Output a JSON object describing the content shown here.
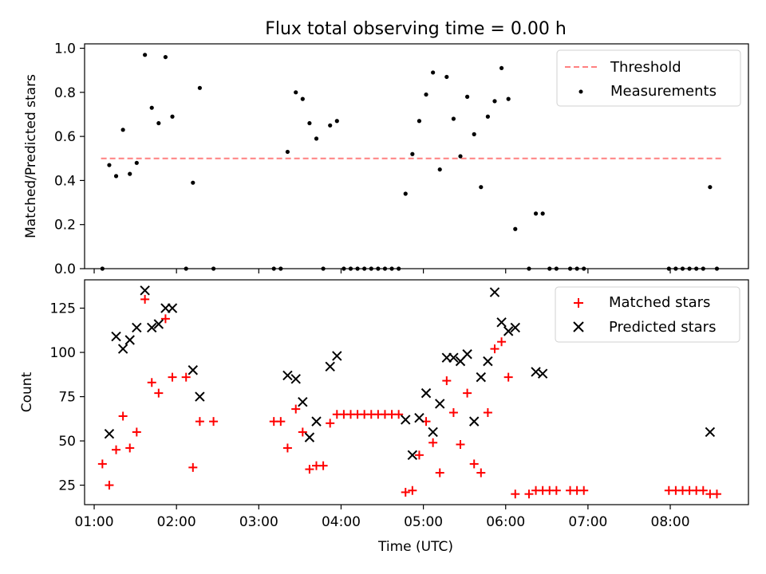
{
  "title": "Flux total observing time = 0.00 h",
  "chart_data": [
    {
      "type": "scatter",
      "ylabel": "Matched/Predicted stars",
      "xlabel": "",
      "xlim": [
        "00:53",
        "08:57"
      ],
      "ylim": [
        0,
        1.02
      ],
      "yticks": [
        "0.0",
        "0.2",
        "0.4",
        "0.6",
        "0.8",
        "1.0"
      ],
      "legend_position": "top-right",
      "threshold": {
        "name": "Threshold",
        "y": 0.5,
        "x_range": [
          "01:05",
          "08:38"
        ],
        "color": "#ff8080",
        "style": "dashed"
      },
      "series": [
        {
          "name": "Measurements",
          "color": "#000000",
          "points": [
            [
              "01:06",
              0.0
            ],
            [
              "01:11",
              0.47
            ],
            [
              "01:16",
              0.42
            ],
            [
              "01:21",
              0.63
            ],
            [
              "01:26",
              0.43
            ],
            [
              "01:31",
              0.48
            ],
            [
              "01:37",
              0.97
            ],
            [
              "01:42",
              0.73
            ],
            [
              "01:47",
              0.66
            ],
            [
              "01:52",
              0.96
            ],
            [
              "01:57",
              0.69
            ],
            [
              "02:07",
              0.0
            ],
            [
              "02:12",
              0.39
            ],
            [
              "02:17",
              0.82
            ],
            [
              "02:27",
              0.0
            ],
            [
              "03:11",
              0.0
            ],
            [
              "03:16",
              0.0
            ],
            [
              "03:21",
              0.53
            ],
            [
              "03:27",
              0.8
            ],
            [
              "03:32",
              0.77
            ],
            [
              "03:37",
              0.66
            ],
            [
              "03:42",
              0.59
            ],
            [
              "03:47",
              0.0
            ],
            [
              "03:52",
              0.65
            ],
            [
              "03:57",
              0.67
            ],
            [
              "04:02",
              0.0
            ],
            [
              "04:07",
              0.0
            ],
            [
              "04:12",
              0.0
            ],
            [
              "04:17",
              0.0
            ],
            [
              "04:22",
              0.0
            ],
            [
              "04:27",
              0.0
            ],
            [
              "04:32",
              0.0
            ],
            [
              "04:37",
              0.0
            ],
            [
              "04:42",
              0.0
            ],
            [
              "04:47",
              0.34
            ],
            [
              "04:52",
              0.52
            ],
            [
              "04:57",
              0.67
            ],
            [
              "05:02",
              0.79
            ],
            [
              "05:07",
              0.89
            ],
            [
              "05:12",
              0.45
            ],
            [
              "05:17",
              0.87
            ],
            [
              "05:22",
              0.68
            ],
            [
              "05:27",
              0.51
            ],
            [
              "05:32",
              0.78
            ],
            [
              "05:37",
              0.61
            ],
            [
              "05:42",
              0.37
            ],
            [
              "05:47",
              0.69
            ],
            [
              "05:52",
              0.76
            ],
            [
              "05:57",
              0.91
            ],
            [
              "06:02",
              0.77
            ],
            [
              "06:07",
              0.18
            ],
            [
              "06:17",
              0.0
            ],
            [
              "06:22",
              0.25
            ],
            [
              "06:27",
              0.25
            ],
            [
              "06:32",
              0.0
            ],
            [
              "06:37",
              0.0
            ],
            [
              "06:47",
              0.0
            ],
            [
              "06:52",
              0.0
            ],
            [
              "06:57",
              0.0
            ],
            [
              "07:59",
              0.0
            ],
            [
              "08:04",
              0.0
            ],
            [
              "08:09",
              0.0
            ],
            [
              "08:14",
              0.0
            ],
            [
              "08:19",
              0.0
            ],
            [
              "08:24",
              0.0
            ],
            [
              "08:29",
              0.37
            ],
            [
              "08:34",
              0.0
            ]
          ]
        }
      ]
    },
    {
      "type": "scatter",
      "ylabel": "Count",
      "xlabel": "Time (UTC)",
      "xlim": [
        "00:53",
        "08:57"
      ],
      "ylim": [
        14,
        141
      ],
      "yticks": [
        "25",
        "50",
        "75",
        "100",
        "125"
      ],
      "xticks": [
        "01:00",
        "02:00",
        "03:00",
        "04:00",
        "05:00",
        "06:00",
        "07:00",
        "08:00"
      ],
      "legend_position": "top-right",
      "series": [
        {
          "name": "Matched stars",
          "marker": "+",
          "color": "#ff0000",
          "points": [
            [
              "01:06",
              37
            ],
            [
              "01:11",
              25
            ],
            [
              "01:16",
              45
            ],
            [
              "01:21",
              64
            ],
            [
              "01:26",
              46
            ],
            [
              "01:31",
              55
            ],
            [
              "01:37",
              130
            ],
            [
              "01:42",
              83
            ],
            [
              "01:47",
              77
            ],
            [
              "01:52",
              119
            ],
            [
              "01:57",
              86
            ],
            [
              "02:07",
              86
            ],
            [
              "02:12",
              35
            ],
            [
              "02:17",
              61
            ],
            [
              "02:27",
              61
            ],
            [
              "03:11",
              61
            ],
            [
              "03:16",
              61
            ],
            [
              "03:21",
              46
            ],
            [
              "03:27",
              68
            ],
            [
              "03:32",
              55
            ],
            [
              "03:37",
              34
            ],
            [
              "03:42",
              36
            ],
            [
              "03:47",
              36
            ],
            [
              "03:52",
              60
            ],
            [
              "03:57",
              65
            ],
            [
              "04:02",
              65
            ],
            [
              "04:07",
              65
            ],
            [
              "04:12",
              65
            ],
            [
              "04:17",
              65
            ],
            [
              "04:22",
              65
            ],
            [
              "04:27",
              65
            ],
            [
              "04:32",
              65
            ],
            [
              "04:37",
              65
            ],
            [
              "04:42",
              65
            ],
            [
              "04:47",
              21
            ],
            [
              "04:52",
              22
            ],
            [
              "04:57",
              42
            ],
            [
              "05:02",
              61
            ],
            [
              "05:07",
              49
            ],
            [
              "05:12",
              32
            ],
            [
              "05:17",
              84
            ],
            [
              "05:22",
              66
            ],
            [
              "05:27",
              48
            ],
            [
              "05:32",
              77
            ],
            [
              "05:37",
              37
            ],
            [
              "05:42",
              32
            ],
            [
              "05:47",
              66
            ],
            [
              "05:52",
              102
            ],
            [
              "05:57",
              106
            ],
            [
              "06:02",
              86
            ],
            [
              "06:07",
              20
            ],
            [
              "06:17",
              20
            ],
            [
              "06:22",
              22
            ],
            [
              "06:27",
              22
            ],
            [
              "06:32",
              22
            ],
            [
              "06:37",
              22
            ],
            [
              "06:47",
              22
            ],
            [
              "06:52",
              22
            ],
            [
              "06:57",
              22
            ],
            [
              "07:59",
              22
            ],
            [
              "08:04",
              22
            ],
            [
              "08:09",
              22
            ],
            [
              "08:14",
              22
            ],
            [
              "08:19",
              22
            ],
            [
              "08:24",
              22
            ],
            [
              "08:29",
              20
            ],
            [
              "08:34",
              20
            ]
          ]
        },
        {
          "name": "Predicted stars",
          "marker": "x",
          "color": "#000000",
          "points": [
            [
              "01:11",
              54
            ],
            [
              "01:16",
              109
            ],
            [
              "01:21",
              102
            ],
            [
              "01:26",
              107
            ],
            [
              "01:31",
              114
            ],
            [
              "01:37",
              135
            ],
            [
              "01:42",
              114
            ],
            [
              "01:47",
              116
            ],
            [
              "01:52",
              125
            ],
            [
              "01:57",
              125
            ],
            [
              "02:12",
              90
            ],
            [
              "02:17",
              75
            ],
            [
              "03:21",
              87
            ],
            [
              "03:27",
              85
            ],
            [
              "03:32",
              72
            ],
            [
              "03:37",
              52
            ],
            [
              "03:42",
              61
            ],
            [
              "03:52",
              92
            ],
            [
              "03:57",
              98
            ],
            [
              "04:47",
              62
            ],
            [
              "04:52",
              42
            ],
            [
              "04:57",
              63
            ],
            [
              "05:02",
              77
            ],
            [
              "05:07",
              55
            ],
            [
              "05:12",
              71
            ],
            [
              "05:17",
              97
            ],
            [
              "05:22",
              97
            ],
            [
              "05:27",
              95
            ],
            [
              "05:32",
              99
            ],
            [
              "05:37",
              61
            ],
            [
              "05:42",
              86
            ],
            [
              "05:47",
              95
            ],
            [
              "05:52",
              134
            ],
            [
              "05:57",
              117
            ],
            [
              "06:02",
              112
            ],
            [
              "06:07",
              114
            ],
            [
              "06:22",
              89
            ],
            [
              "06:27",
              88
            ],
            [
              "08:29",
              55
            ]
          ]
        }
      ]
    }
  ]
}
